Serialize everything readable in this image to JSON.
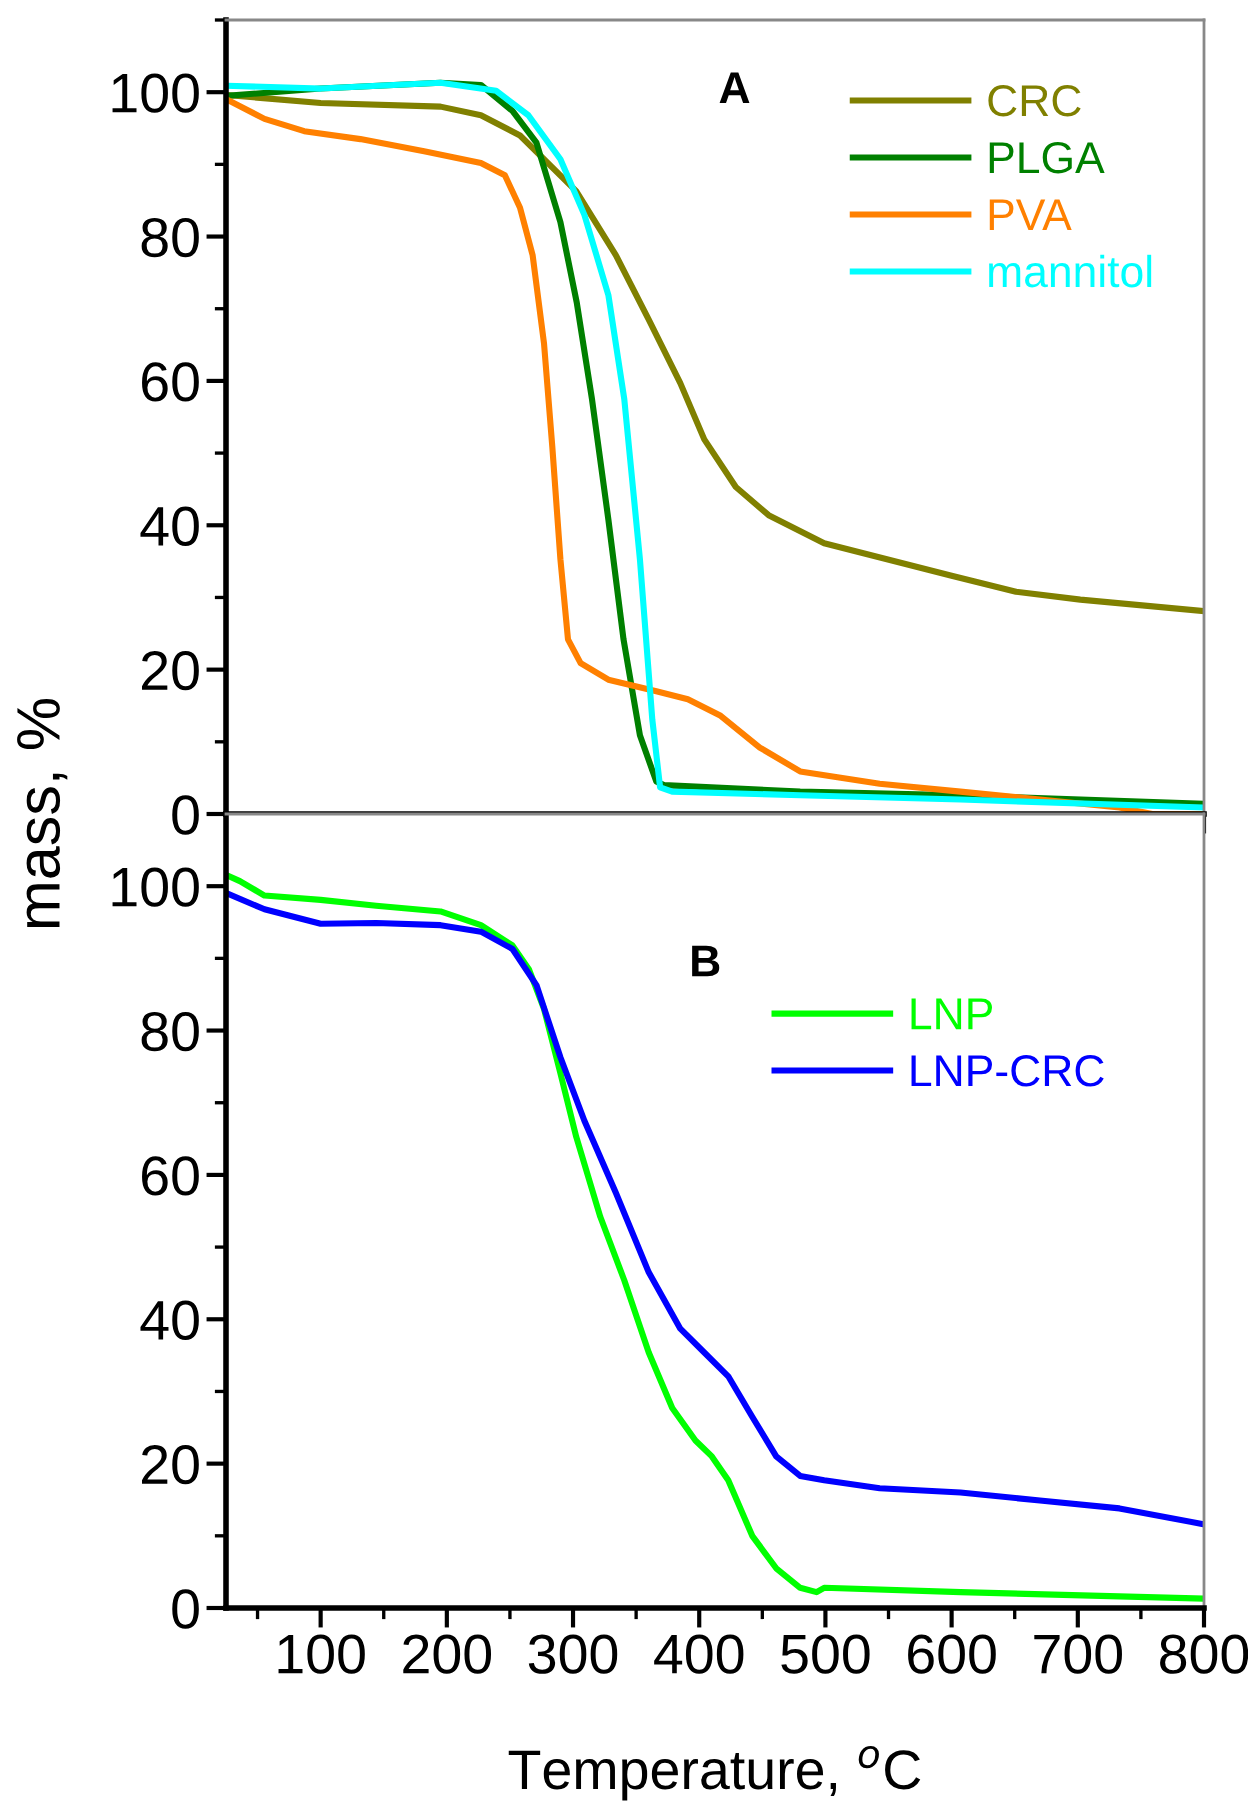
{
  "chart_data": [
    {
      "type": "line",
      "title": "A",
      "ylabel": "mass, %",
      "xlim": [
        25,
        800
      ],
      "ylim": [
        0,
        110
      ],
      "xticks": [
        100,
        200,
        300,
        400,
        500,
        600,
        700,
        800
      ],
      "yticks": [
        0,
        20,
        40,
        60,
        80,
        100
      ],
      "tick_labels": "y",
      "legend": "top right",
      "grid": false,
      "marker": "none",
      "line_style": "solid",
      "series": [
        {
          "name": "CRC",
          "color": "#808000",
          "x": [
            25.6,
            100,
            195,
            227,
            258,
            302.5,
            334,
            360,
            385,
            404,
            429,
            455,
            499,
            600,
            651,
            702,
            800
          ],
          "values": [
            99.6,
            98.5,
            98,
            96.8,
            94,
            86.3,
            77.4,
            68.5,
            59.7,
            51.9,
            45.3,
            41.4,
            37.5,
            33,
            30.8,
            29.7,
            28.1
          ]
        },
        {
          "name": "PLGA",
          "color": "#008000",
          "x": [
            25.6,
            100,
            195,
            227,
            252,
            271,
            290,
            303,
            315,
            328,
            340,
            353,
            366,
            372,
            480,
            607,
            800
          ],
          "values": [
            99.5,
            100.5,
            101.3,
            101,
            97.4,
            93,
            82,
            70.8,
            57.5,
            40.8,
            24.2,
            10.9,
            4.5,
            4.0,
            3.1,
            2.6,
            1.4
          ]
        },
        {
          "name": "PVA",
          "color": "#ff8000",
          "x": [
            25.6,
            55.5,
            87,
            131.5,
            182,
            227,
            246,
            258,
            268,
            277,
            283.6,
            290,
            296,
            306,
            328,
            366,
            391,
            417,
            448,
            480,
            543,
            607,
            670,
            733,
            759,
            800
          ],
          "values": [
            99,
            96.3,
            94.6,
            93.5,
            91.8,
            90.2,
            88.5,
            84,
            77.4,
            65.2,
            50.8,
            35.3,
            24.2,
            20.9,
            18.6,
            17,
            15.9,
            13.6,
            9.2,
            5.9,
            4.2,
            3.1,
            2,
            0.9,
            0,
            0
          ]
        },
        {
          "name": "mannitol",
          "color": "#00ffff",
          "x": [
            25.6,
            100,
            195,
            239,
            264.6,
            290,
            309,
            328,
            340.6,
            353,
            362.8,
            369,
            378.6,
            480,
            607,
            800
          ],
          "values": [
            100.9,
            100.5,
            101.3,
            100.2,
            96.8,
            90.7,
            83,
            71.9,
            57.5,
            35.3,
            13.1,
            3.7,
            3.1,
            2.6,
            2,
            0.9
          ]
        }
      ]
    },
    {
      "type": "line",
      "title": "B",
      "xlabel": "Temperature, $^{o}$C",
      "xlim": [
        25,
        800
      ],
      "ylim": [
        0,
        110
      ],
      "xticks": [
        100,
        200,
        300,
        400,
        500,
        600,
        700,
        800
      ],
      "yticks": [
        0,
        20,
        40,
        60,
        80,
        100
      ],
      "legend": "right",
      "grid": false,
      "marker": "none",
      "line_style": "solid",
      "series": [
        {
          "name": "LNP",
          "color": "#00ff00",
          "x": [
            25.7,
            36,
            55.5,
            100,
            144,
            195,
            227,
            252,
            265,
            277,
            290,
            302.5,
            321.6,
            340.6,
            360,
            378.6,
            397,
            410,
            423,
            442,
            461,
            480,
            493,
            499,
            607,
            800
          ],
          "values": [
            101.5,
            100.7,
            98.7,
            98.1,
            97.3,
            96.5,
            94.6,
            91.8,
            88.5,
            83,
            74.1,
            65.3,
            54.2,
            45.4,
            35.4,
            27.7,
            23.2,
            21,
            17.7,
            10,
            5.5,
            2.8,
            2.2,
            2.8,
            2.2,
            1.3
          ]
        },
        {
          "name": "LNP-CRC",
          "color": "#0000ff",
          "x": [
            25.7,
            55.5,
            100,
            144,
            195,
            227,
            252,
            271,
            290,
            309,
            334,
            360,
            385,
            404,
            423,
            442,
            461,
            480,
            499,
            543,
            607,
            670,
            733,
            800
          ],
          "values": [
            99,
            96.8,
            94.8,
            94.9,
            94.6,
            93.7,
            91.3,
            86.3,
            76.3,
            67.5,
            57.5,
            46.5,
            38.7,
            35.4,
            32.1,
            26.5,
            21,
            18.3,
            17.7,
            16.6,
            16,
            14.9,
            13.8,
            11.6
          ]
        }
      ]
    }
  ]
}
